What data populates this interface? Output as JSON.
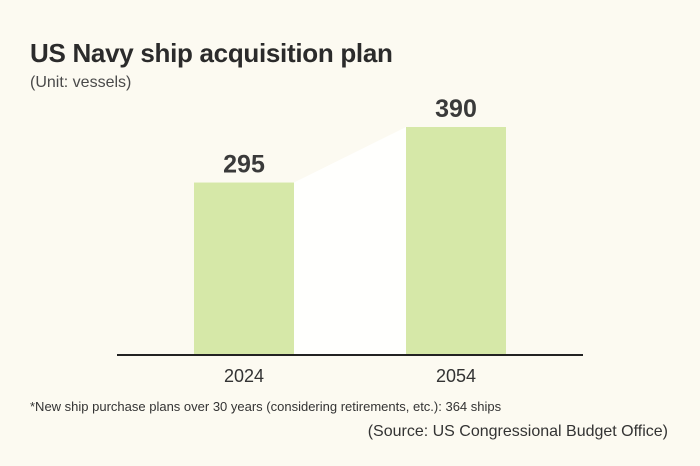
{
  "chart_data": {
    "type": "bar",
    "title": "US Navy ship acquisition plan",
    "subtitle": "(Unit: vessels)",
    "categories": [
      "2024",
      "2054"
    ],
    "values": [
      295,
      390
    ],
    "ylim": [
      0,
      390
    ],
    "grid": false,
    "legend": "none",
    "bar_color": "#d6e8a8",
    "axis_color": "#222222"
  },
  "footnote": "*New ship purchase plans over 30 years  (considering retirements, etc.): 364 ships",
  "source": "(Source: US Congressional Budget Office)"
}
